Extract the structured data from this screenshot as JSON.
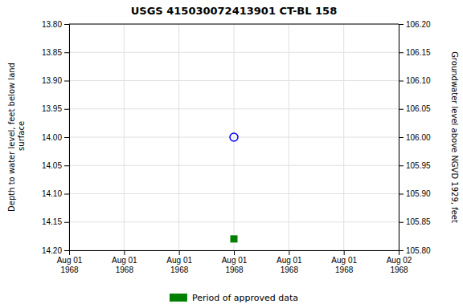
{
  "chart_data": {
    "type": "scatter",
    "title": "USGS 415030072413901  CT-BL   158",
    "y_label": "Depth to water level, feet below land\n surface",
    "y2_label": "Groundwater level above NGVD 1929, feet",
    "categories": [
      "Aug 01\n1968",
      "Aug 01\n1968",
      "Aug 01\n1968",
      "Aug 01\n1968",
      "Aug 01\n1968",
      "Aug 01\n1968",
      "Aug 02\n1968"
    ],
    "series": [
      {
        "color": "blue",
        "marker": "open-circle",
        "values": [
          null,
          null,
          null,
          14.0,
          null,
          null,
          null
        ]
      },
      {
        "name": "Period of approved data",
        "color": "green",
        "marker": "square",
        "values": [
          null,
          null,
          null,
          14.18,
          null,
          null,
          null
        ]
      }
    ],
    "ylim": [
      14.2,
      13.8
    ],
    "yticks": [
      {
        "value": 13.8,
        "label": "13.80"
      },
      13.85,
      {
        "value": 13.9,
        "label": "13.90"
      },
      13.95,
      {
        "value": 14.0,
        "label": "14.00"
      },
      14.05,
      {
        "value": 14.1,
        "label": "14.10"
      },
      14.15,
      {
        "value": 14.2,
        "label": "14.20"
      }
    ],
    "y2lim": [
      105.8,
      106.2
    ],
    "y2ticks": [
      {
        "value": 106.2,
        "label": "106.20"
      },
      106.15,
      {
        "value": 106.1,
        "label": "106.10"
      },
      106.05,
      {
        "value": 106.0,
        "label": "106.00"
      },
      105.95,
      {
        "value": 105.9,
        "label": "105.90"
      },
      105.85,
      {
        "value": 105.8,
        "label": "105.80"
      }
    ],
    "grid": true,
    "legend": "bottom"
  }
}
